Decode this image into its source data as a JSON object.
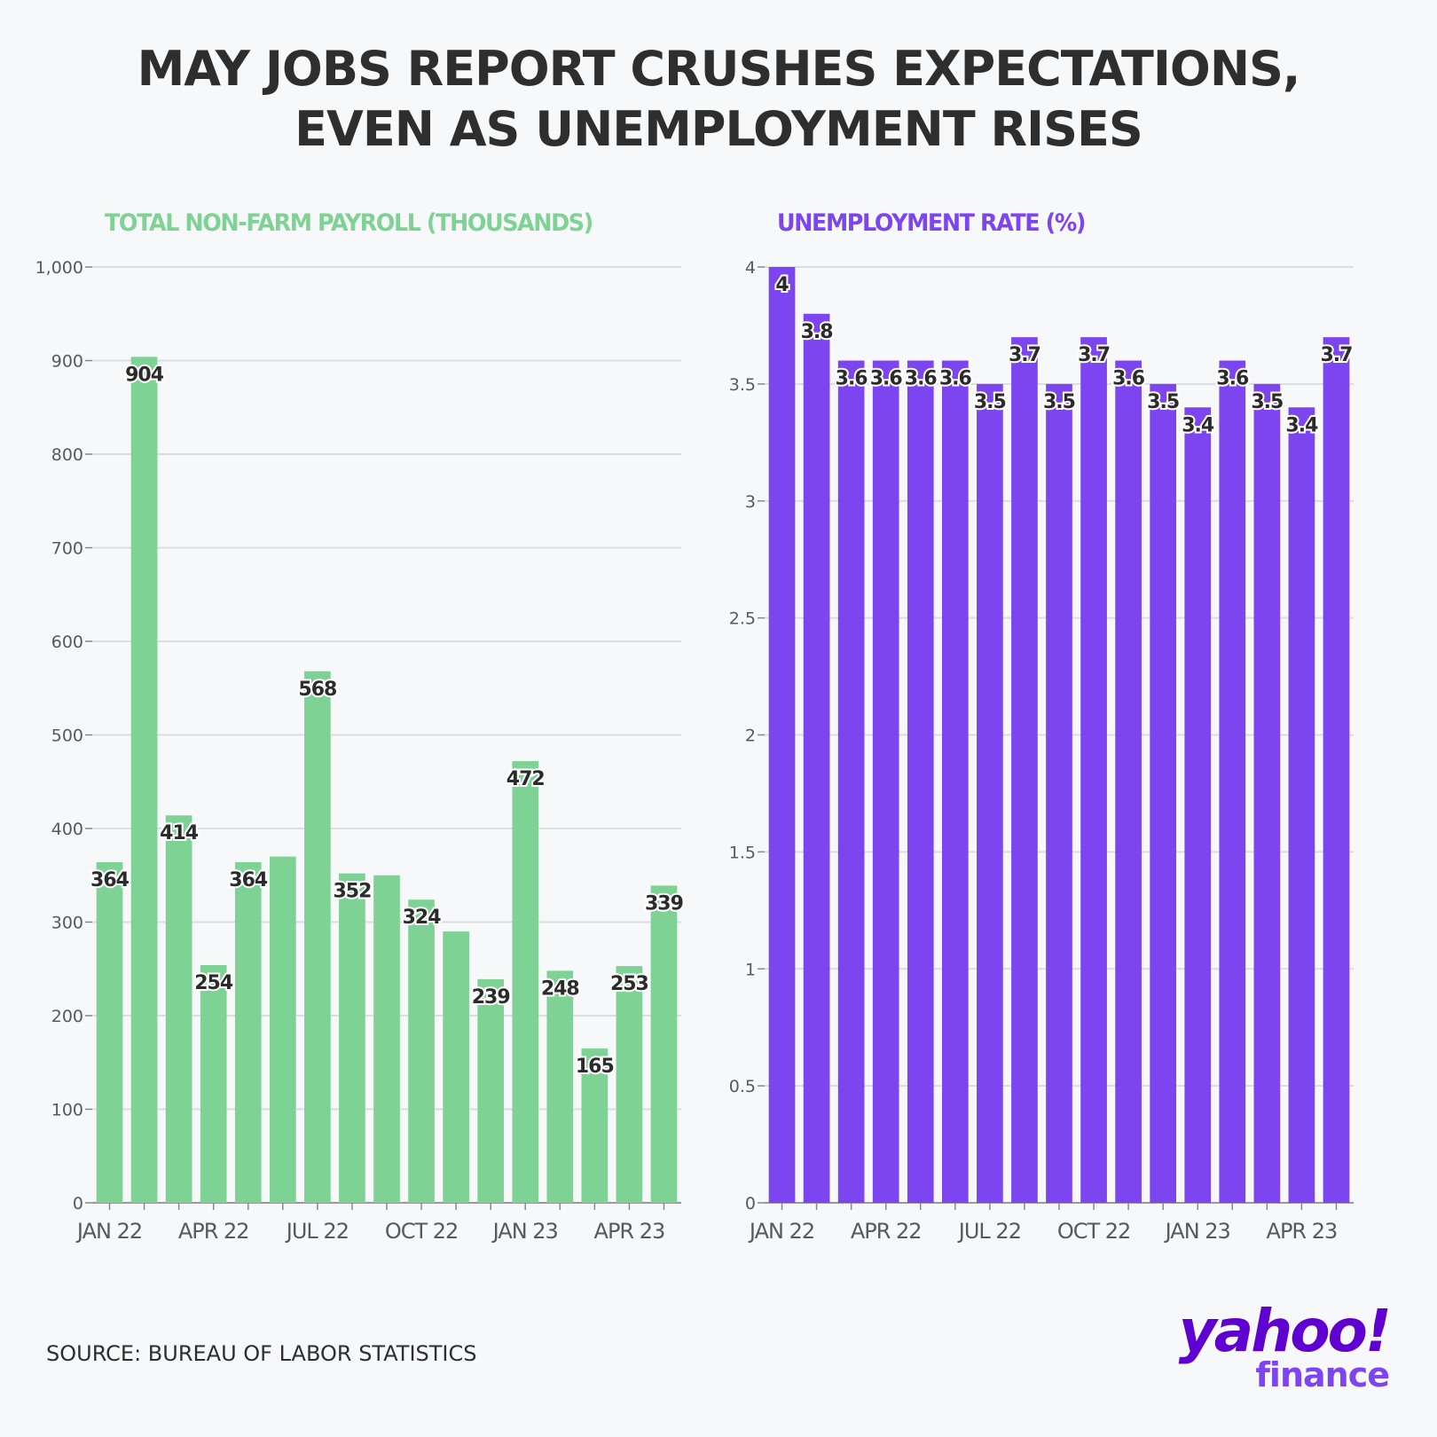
{
  "headline": {
    "line1": "MAY JOBS REPORT CRUSHES EXPECTATIONS,",
    "line2": "EVEN AS UNEMPLOYMENT RISES"
  },
  "source": "SOURCE: BUREAU OF LABOR STATISTICS",
  "logo": {
    "main": "yahoo!",
    "sub": "finance"
  },
  "chart_data": [
    {
      "type": "bar",
      "title": "TOTAL NON-FARM PAYROLL (THOUSANDS)",
      "color": "#7ed394",
      "categories": [
        "JAN 22",
        "FEB 22",
        "MAR 22",
        "APR 22",
        "MAY 22",
        "JUN 22",
        "JUL 22",
        "AUG 22",
        "SEP 22",
        "OCT 22",
        "NOV 22",
        "DEC 22",
        "JAN 23",
        "FEB 23",
        "MAR 23",
        "APR 23",
        "MAY 23"
      ],
      "values": [
        364,
        904,
        414,
        254,
        364,
        370,
        568,
        352,
        350,
        324,
        290,
        239,
        472,
        248,
        165,
        253,
        339
      ],
      "data_labels": [
        "364",
        "904",
        "414",
        "254",
        "364",
        "",
        "568",
        "352",
        "",
        "324",
        "",
        "239",
        "472",
        "248",
        "165",
        "253",
        "339"
      ],
      "x_tick_labels": [
        "JAN 22",
        "",
        "",
        "APR 22",
        "",
        "",
        "JUL 22",
        "",
        "",
        "OCT 22",
        "",
        "",
        "JAN 23",
        "",
        "",
        "APR 23",
        ""
      ],
      "y_ticks": [
        "0",
        "100",
        "200",
        "300",
        "400",
        "500",
        "600",
        "700",
        "800",
        "900",
        "1,000"
      ],
      "ylim": [
        0,
        1000
      ],
      "grid": true
    },
    {
      "type": "bar",
      "title": "UNEMPLOYMENT RATE (%)",
      "color": "#7d45f0",
      "categories": [
        "JAN 22",
        "FEB 22",
        "MAR 22",
        "APR 22",
        "MAY 22",
        "JUN 22",
        "JUL 22",
        "AUG 22",
        "SEP 22",
        "OCT 22",
        "NOV 22",
        "DEC 22",
        "JAN 23",
        "FEB 23",
        "MAR 23",
        "APR 23",
        "MAY 23"
      ],
      "values": [
        4,
        3.8,
        3.6,
        3.6,
        3.6,
        3.6,
        3.5,
        3.7,
        3.5,
        3.7,
        3.6,
        3.5,
        3.4,
        3.6,
        3.5,
        3.4,
        3.7
      ],
      "data_labels": [
        "4",
        "3.8",
        "3.6",
        "3.6",
        "3.6",
        "3.6",
        "3.5",
        "3.7",
        "3.5",
        "3.7",
        "3.6",
        "3.5",
        "3.4",
        "3.6",
        "3.5",
        "3.4",
        "3.7"
      ],
      "x_tick_labels": [
        "JAN 22",
        "",
        "",
        "APR 22",
        "",
        "",
        "JUL 22",
        "",
        "",
        "OCT 22",
        "",
        "",
        "JAN 23",
        "",
        "",
        "APR 23",
        ""
      ],
      "y_ticks": [
        "0",
        "0.5",
        "1",
        "1.5",
        "2",
        "2.5",
        "3",
        "3.5",
        "4"
      ],
      "ylim": [
        0,
        4
      ],
      "grid": true
    }
  ]
}
